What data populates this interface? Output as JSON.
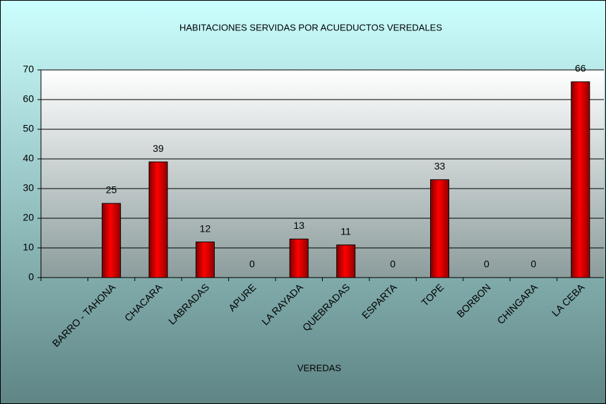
{
  "chart_data": {
    "type": "bar",
    "title": "HABITACIONES SERVIDAS POR ACUEDUCTOS VEREDALES",
    "x_label": "VEREDAS",
    "categories": [
      null,
      "BARRO - TAHONA",
      "CHACARA",
      "LABRADAS",
      "APURE",
      "LA RAYADA",
      "QUEBRADAS",
      "ESPARTA",
      "TOPE",
      "BORBON",
      "CHINGARA",
      "LA CEBA"
    ],
    "values": [
      null,
      25,
      39,
      12,
      0,
      13,
      11,
      0,
      33,
      0,
      0,
      66
    ],
    "color": "#ff0000",
    "ylim": [
      0,
      70
    ],
    "yticks": [
      0,
      10,
      20,
      30,
      40,
      50,
      60,
      70
    ],
    "grid": true
  }
}
